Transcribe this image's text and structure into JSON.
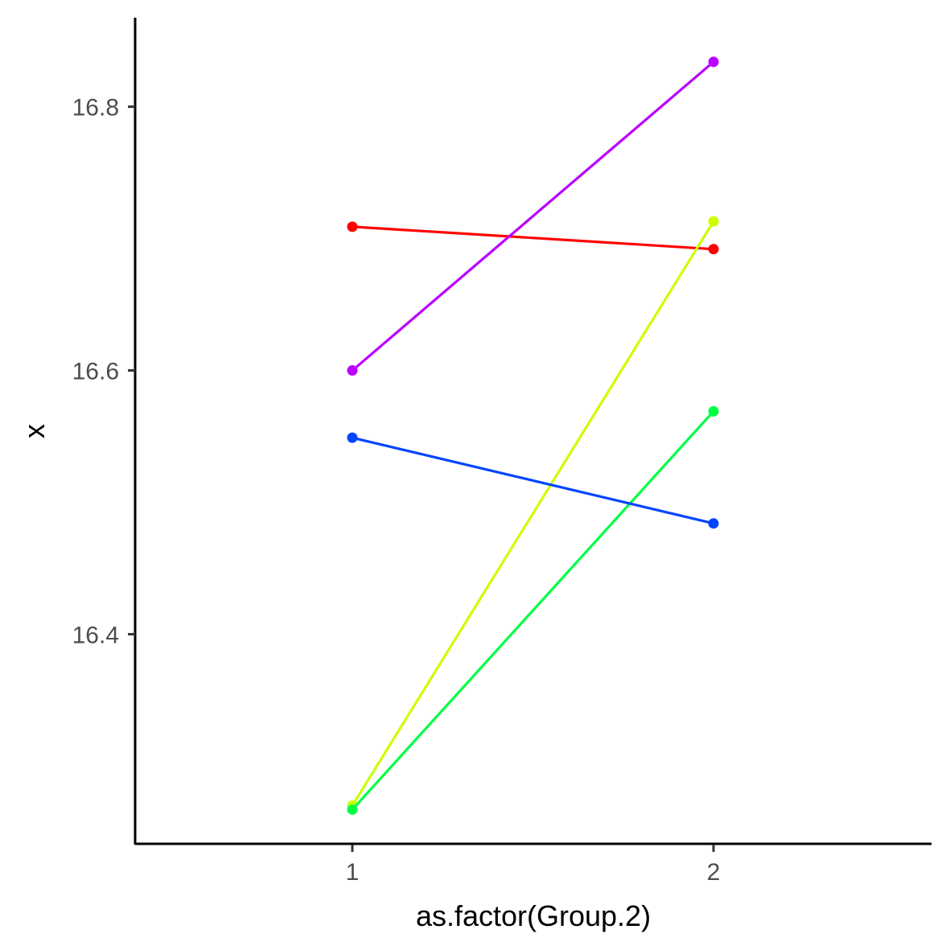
{
  "chart_data": {
    "type": "line",
    "title": "",
    "xlabel": "as.factor(Group.2)",
    "ylabel": "x",
    "categories": [
      "1",
      "2"
    ],
    "ylim": [
      16.268,
      16.888
    ],
    "yticks": [
      16.4,
      16.6,
      16.8
    ],
    "ytick_labels": [
      "16.4",
      "16.6",
      "16.8"
    ],
    "grid": false,
    "legend": "none",
    "series": [
      {
        "color": "#FF0000",
        "values": [
          16.709,
          16.692
        ]
      },
      {
        "color": "#CCFF00",
        "values": [
          16.27,
          16.713
        ]
      },
      {
        "color": "#00FF44",
        "values": [
          16.267,
          16.569
        ]
      },
      {
        "color": "#0044FF",
        "values": [
          16.549,
          16.484
        ]
      },
      {
        "color": "#BB00FF",
        "values": [
          16.6,
          16.834
        ]
      }
    ]
  }
}
